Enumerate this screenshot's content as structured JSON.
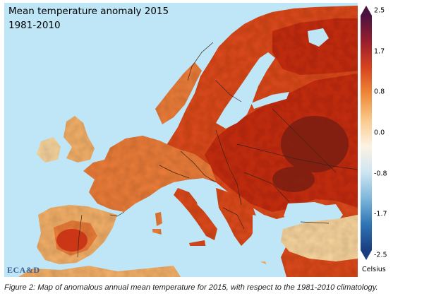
{
  "map": {
    "title": "Mean temperature anomaly 2015",
    "subtitle": "1981-2010",
    "logo_text": "ECA&D",
    "colors": {
      "sea": "#bfe6f7",
      "land_deep": "#c82d10",
      "land_red": "#df4a1c",
      "land_orange": "#ee7e3a",
      "land_light": "#f6b26a",
      "land_pale": "#fbd79f",
      "warm_max": "#7a1e12",
      "border": "#3a2418"
    }
  },
  "colorbar": {
    "ticks": [
      "2.5",
      "1.7",
      "0.8",
      "0.0",
      "-0.8",
      "-1.7",
      "-2.5"
    ],
    "unit": "Celsius",
    "colors": [
      "#4b1340",
      "#9a1e2e",
      "#d8431f",
      "#ef8838",
      "#f9c98a",
      "#fdf2e3",
      "#cfe6f3",
      "#7fb8dc",
      "#2f75b5",
      "#193d80"
    ]
  },
  "caption": "Figure 2: Map of anomalous annual mean temperature for 2015, with respect to the 1981-2010 climatology."
}
